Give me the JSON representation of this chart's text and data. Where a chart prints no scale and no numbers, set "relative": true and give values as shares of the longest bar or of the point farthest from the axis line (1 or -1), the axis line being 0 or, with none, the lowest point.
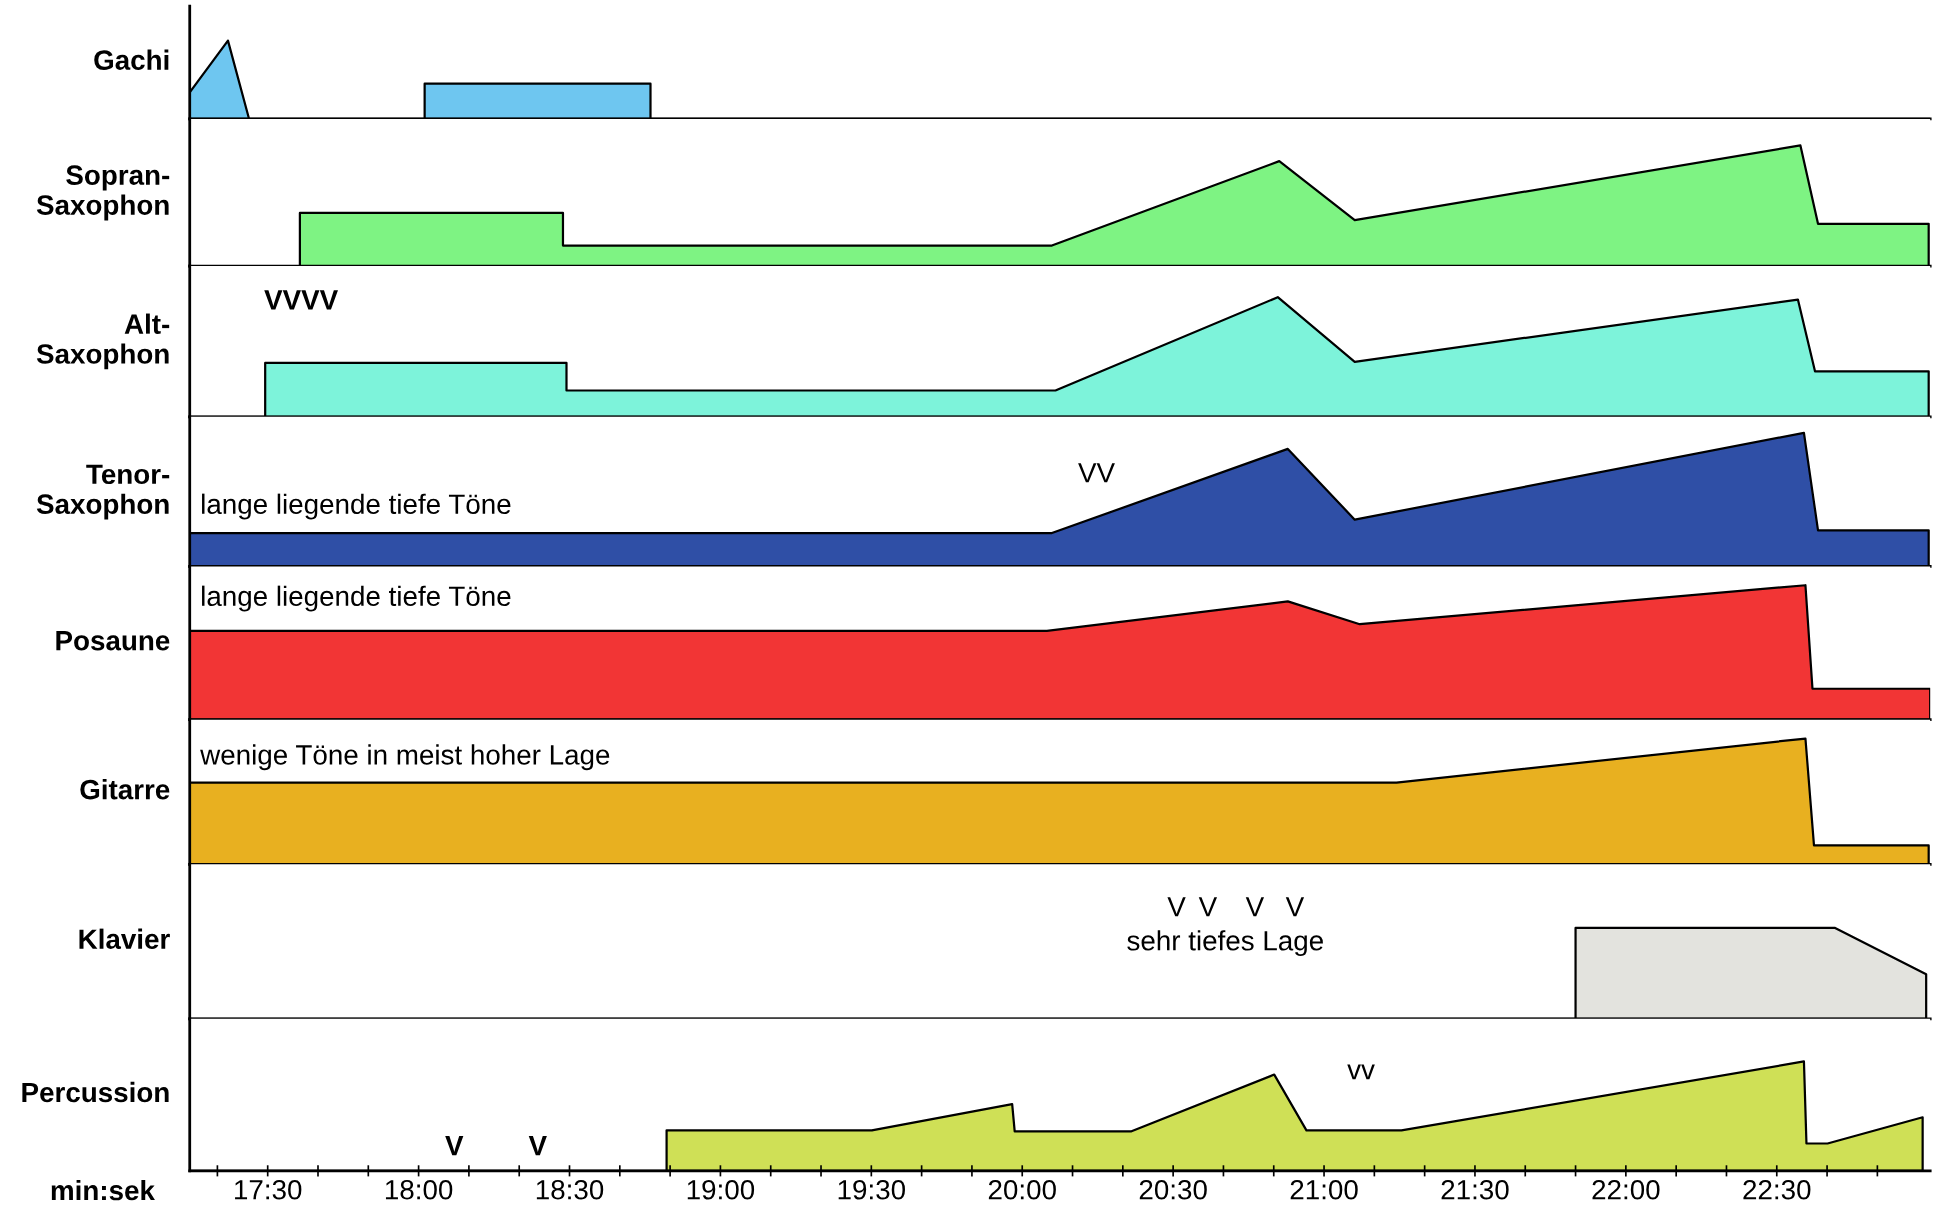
{
  "chart_data": [
    {
      "type": "area",
      "relative": true,
      "ylabel": "Gachi",
      "tick_labels": false,
      "xlim": [
        1034.5,
        1380.5
      ],
      "x": [
        1034.5,
        1042.1,
        1046.3,
        1081.2,
        1081.2,
        1126.1,
        1126.1,
        1380.5
      ],
      "values": [
        0.34,
        1,
        0,
        0,
        0.45,
        0.45,
        0,
        0
      ],
      "color": "#6ec6f0"
    },
    {
      "type": "area",
      "relative": true,
      "ylabel": "Sopran-\nSaxophon",
      "tick_labels": false,
      "xlim": [
        1034.5,
        1380.5
      ],
      "x": [
        1034.5,
        1056.4,
        1056.4,
        1108.7,
        1108.7,
        1205.9,
        1251.1,
        1266.1,
        1354.7,
        1358.2,
        1380.2
      ],
      "values": [
        0,
        0,
        0.44,
        0.44,
        0.17,
        0.17,
        0.87,
        0.38,
        1,
        0.35,
        0.35
      ],
      "color": "#7ef383"
    },
    {
      "type": "area",
      "relative": true,
      "ylabel": "Alt-\nSaxophon",
      "tick_labels": false,
      "xlim": [
        1034.5,
        1380.5
      ],
      "x": [
        1034.5,
        1049.5,
        1049.5,
        1109.4,
        1109.4,
        1206.6,
        1250.8,
        1266.1,
        1354.2,
        1357.6,
        1380.2
      ],
      "values": [
        0,
        0,
        0.45,
        0.45,
        0.22,
        0.22,
        1,
        0.46,
        0.98,
        0.38,
        0.38
      ],
      "color": "#7df3da",
      "annotations": [
        "VVVV"
      ]
    },
    {
      "type": "area",
      "relative": true,
      "ylabel": "Tenor-\nSaxophon",
      "tick_labels": false,
      "xlim": [
        1034.5,
        1380.5
      ],
      "x": [
        1034.5,
        1205.9,
        1252.8,
        1266.1,
        1355.4,
        1358.2,
        1380.2
      ],
      "values": [
        0.25,
        0.25,
        0.88,
        0.35,
        1,
        0.27,
        0.27
      ],
      "color": "#2f4fa6",
      "annotations": [
        "lange liegende tiefe Töne",
        "VV"
      ]
    },
    {
      "type": "area",
      "relative": true,
      "ylabel": "Posaune",
      "tick_labels": false,
      "xlim": [
        1034.5,
        1380.5
      ],
      "x": [
        1034.5,
        1204.9,
        1252.8,
        1267.1,
        1355.7,
        1357.1,
        1380.5
      ],
      "values": [
        0.66,
        0.66,
        0.88,
        0.71,
        1,
        0.23,
        0.23
      ],
      "color": "#f23535",
      "annotations": [
        "lange liegende tiefe Töne"
      ]
    },
    {
      "type": "area",
      "relative": true,
      "ylabel": "Gitarre",
      "tick_labels": false,
      "xlim": [
        1034.5,
        1380.5
      ],
      "x": [
        1034.5,
        1274.4,
        1355.7,
        1357.4,
        1380.2
      ],
      "values": [
        0.65,
        0.65,
        1,
        0.15,
        0.15
      ],
      "color": "#e8b020",
      "annotations": [
        "wenige Töne in meist hoher Lage"
      ]
    },
    {
      "type": "area",
      "relative": true,
      "ylabel": "Klavier",
      "tick_labels": false,
      "xlim": [
        1034.5,
        1380.5
      ],
      "x": [
        1034.5,
        1310.0,
        1310.0,
        1361.6,
        1379.7,
        1379.7
      ],
      "values": [
        0,
        0,
        1,
        1,
        0.49,
        0
      ],
      "color": "#e3e3de",
      "annotations": [
        "V",
        "V",
        "V",
        "V",
        "sehr tiefes Lage"
      ]
    },
    {
      "type": "area",
      "relative": true,
      "ylabel": "Percussion",
      "xlabel": "min:sek",
      "tick_labels": "x",
      "xlim": [
        1034.5,
        1380.5
      ],
      "xticks": [
        {
          "value": 1040,
          "label": null
        },
        {
          "value": 1050,
          "label": "17:30"
        },
        {
          "value": 1060,
          "label": null
        },
        {
          "value": 1070,
          "label": null
        },
        {
          "value": 1080,
          "label": "18:00"
        },
        {
          "value": 1090,
          "label": null
        },
        {
          "value": 1100,
          "label": null
        },
        {
          "value": 1110,
          "label": "18:30"
        },
        {
          "value": 1120,
          "label": null
        },
        {
          "value": 1130,
          "label": null
        },
        {
          "value": 1140,
          "label": "19:00"
        },
        {
          "value": 1150,
          "label": null
        },
        {
          "value": 1160,
          "label": null
        },
        {
          "value": 1170,
          "label": "19:30"
        },
        {
          "value": 1180,
          "label": null
        },
        {
          "value": 1190,
          "label": null
        },
        {
          "value": 1200,
          "label": "20:00"
        },
        {
          "value": 1210,
          "label": null
        },
        {
          "value": 1220,
          "label": null
        },
        {
          "value": 1230,
          "label": "20:30"
        },
        {
          "value": 1240,
          "label": null
        },
        {
          "value": 1250,
          "label": null
        },
        {
          "value": 1260,
          "label": "21:00"
        },
        {
          "value": 1270,
          "label": null
        },
        {
          "value": 1280,
          "label": null
        },
        {
          "value": 1290,
          "label": "21:30"
        },
        {
          "value": 1300,
          "label": null
        },
        {
          "value": 1310,
          "label": null
        },
        {
          "value": 1320,
          "label": "22:00"
        },
        {
          "value": 1330,
          "label": null
        },
        {
          "value": 1340,
          "label": null
        },
        {
          "value": 1350,
          "label": "22:30"
        },
        {
          "value": 1360,
          "label": null
        },
        {
          "value": 1370,
          "label": null
        }
      ],
      "x": [
        1034.5,
        1129.3,
        1129.3,
        1170.1,
        1198.0,
        1198.5,
        1221.6,
        1250.1,
        1256.5,
        1275.4,
        1355.4,
        1355.9,
        1360.1,
        1379.0,
        1379.0
      ],
      "values": [
        0,
        0,
        0.37,
        0.37,
        0.61,
        0.36,
        0.36,
        0.88,
        0.37,
        0.37,
        1,
        0.25,
        0.25,
        0.49,
        0
      ],
      "color": "#cfe056",
      "annotations": [
        "V",
        "V",
        "vv"
      ]
    }
  ]
}
